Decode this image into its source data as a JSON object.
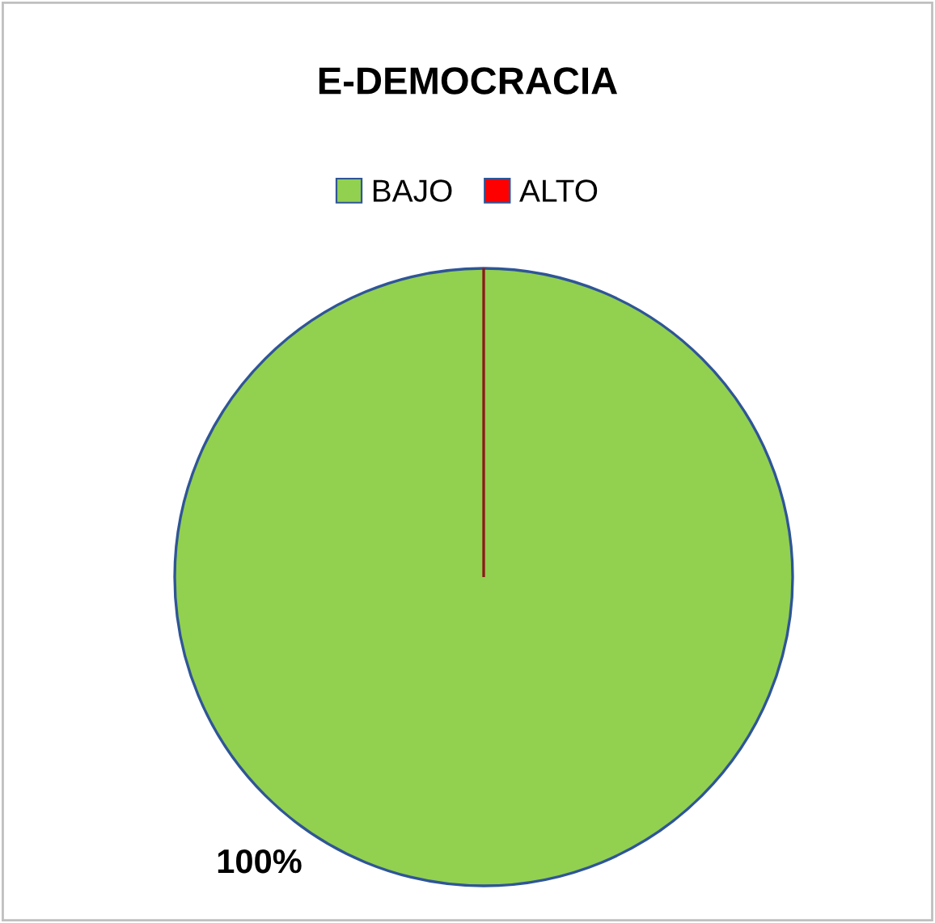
{
  "chart_data": {
    "type": "pie",
    "title": "E-DEMOCRACIA",
    "categories": [
      "BAJO",
      "ALTO"
    ],
    "values": [
      100,
      0
    ],
    "colors": [
      "#92d050",
      "#ff0000"
    ],
    "value_labels": [
      "100%",
      null
    ],
    "legend": "top"
  }
}
